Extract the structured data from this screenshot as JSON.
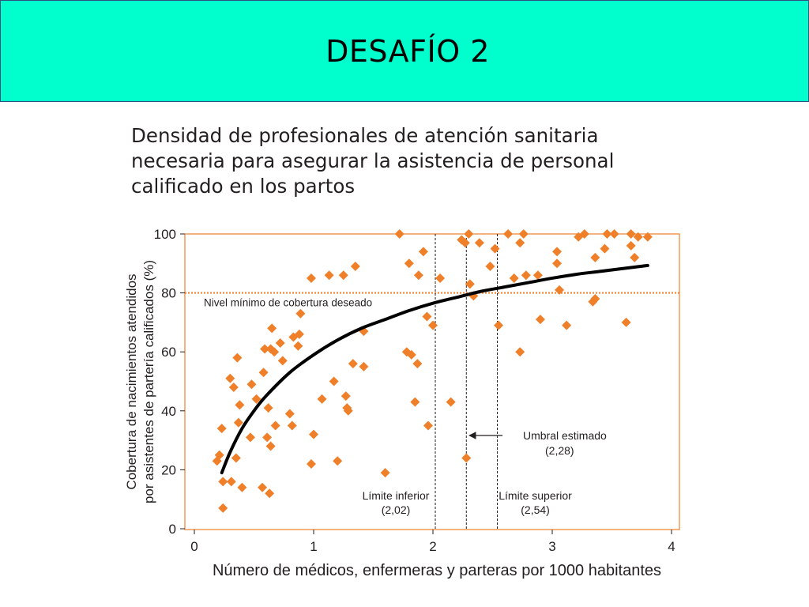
{
  "slide": {
    "title": "DESAFÍO 2",
    "banner_color": "#00ffcc"
  },
  "chart_data": {
    "type": "scatter",
    "title": "Densidad de profesionales de atención sanitaria necesaria para asegurar la asistencia de personal calificado en los partos",
    "xlabel": "Número de médicos, enfermeras y parteras por 1000 habitantes",
    "ylabel": "Cobertura de nacimientos atendidos por asistentes de partería calificados (%)",
    "xlim": [
      0,
      4
    ],
    "ylim": [
      0,
      100
    ],
    "x_ticks": [
      "0",
      "1",
      "2",
      "3",
      "4"
    ],
    "y_ticks": [
      "0",
      "20",
      "40",
      "60",
      "80",
      "100"
    ],
    "marker_color": "#f07f2a",
    "curve_color": "#000000",
    "points": [
      [
        0.19,
        23
      ],
      [
        0.21,
        25
      ],
      [
        0.23,
        34
      ],
      [
        0.24,
        16
      ],
      [
        0.24,
        7
      ],
      [
        0.3,
        51
      ],
      [
        0.31,
        16
      ],
      [
        0.33,
        48
      ],
      [
        0.35,
        24
      ],
      [
        0.36,
        58
      ],
      [
        0.37,
        36
      ],
      [
        0.38,
        42
      ],
      [
        0.4,
        14
      ],
      [
        0.47,
        31
      ],
      [
        0.48,
        49
      ],
      [
        0.52,
        44
      ],
      [
        0.57,
        14
      ],
      [
        0.58,
        53
      ],
      [
        0.59,
        61
      ],
      [
        0.61,
        31
      ],
      [
        0.62,
        41
      ],
      [
        0.63,
        12
      ],
      [
        0.64,
        61
      ],
      [
        0.64,
        28
      ],
      [
        0.65,
        68
      ],
      [
        0.67,
        60
      ],
      [
        0.68,
        35
      ],
      [
        0.72,
        63
      ],
      [
        0.74,
        57
      ],
      [
        0.8,
        39
      ],
      [
        0.82,
        35
      ],
      [
        0.83,
        65
      ],
      [
        0.87,
        62
      ],
      [
        0.88,
        66
      ],
      [
        0.89,
        73
      ],
      [
        0.98,
        85
      ],
      [
        0.98,
        22
      ],
      [
        1.0,
        32
      ],
      [
        1.07,
        44
      ],
      [
        1.13,
        86
      ],
      [
        1.17,
        50
      ],
      [
        1.2,
        23
      ],
      [
        1.25,
        86
      ],
      [
        1.27,
        45
      ],
      [
        1.28,
        41
      ],
      [
        1.29,
        40
      ],
      [
        1.33,
        56
      ],
      [
        1.35,
        89
      ],
      [
        1.42,
        55
      ],
      [
        1.42,
        67
      ],
      [
        1.6,
        19
      ],
      [
        1.72,
        100
      ],
      [
        1.78,
        60
      ],
      [
        1.8,
        90
      ],
      [
        1.82,
        59
      ],
      [
        1.85,
        43
      ],
      [
        1.87,
        56
      ],
      [
        1.88,
        86
      ],
      [
        1.92,
        94
      ],
      [
        1.95,
        72
      ],
      [
        1.96,
        35
      ],
      [
        2.0,
        69
      ],
      [
        2.06,
        85
      ],
      [
        2.15,
        43
      ],
      [
        2.24,
        98
      ],
      [
        2.27,
        97
      ],
      [
        2.28,
        24
      ],
      [
        2.3,
        100
      ],
      [
        2.31,
        83
      ],
      [
        2.34,
        79
      ],
      [
        2.39,
        97
      ],
      [
        2.48,
        89
      ],
      [
        2.52,
        95
      ],
      [
        2.55,
        69
      ],
      [
        2.63,
        100
      ],
      [
        2.68,
        85
      ],
      [
        2.73,
        97
      ],
      [
        2.73,
        60
      ],
      [
        2.76,
        100
      ],
      [
        2.78,
        86
      ],
      [
        2.88,
        86
      ],
      [
        2.9,
        71
      ],
      [
        3.04,
        94
      ],
      [
        3.04,
        90
      ],
      [
        3.06,
        81
      ],
      [
        3.12,
        69
      ],
      [
        3.22,
        99
      ],
      [
        3.27,
        100
      ],
      [
        3.34,
        77
      ],
      [
        3.36,
        92
      ],
      [
        3.36,
        78
      ],
      [
        3.44,
        95
      ],
      [
        3.46,
        100
      ],
      [
        3.52,
        100
      ],
      [
        3.62,
        70
      ],
      [
        3.66,
        100
      ],
      [
        3.66,
        96
      ],
      [
        3.69,
        92
      ],
      [
        3.72,
        99
      ],
      [
        3.8,
        99
      ]
    ],
    "curve": {
      "label": "",
      "points": [
        [
          0.23,
          19
        ],
        [
          0.3,
          26
        ],
        [
          0.4,
          34
        ],
        [
          0.5,
          40
        ],
        [
          0.6,
          45
        ],
        [
          0.8,
          53
        ],
        [
          1.0,
          59
        ],
        [
          1.2,
          64
        ],
        [
          1.4,
          68
        ],
        [
          1.6,
          71
        ],
        [
          1.8,
          74
        ],
        [
          2.0,
          76.5
        ],
        [
          2.2,
          78.5
        ],
        [
          2.4,
          80.5
        ],
        [
          2.6,
          82
        ],
        [
          2.8,
          83.5
        ],
        [
          3.0,
          85
        ],
        [
          3.2,
          86.3
        ],
        [
          3.4,
          87.3
        ],
        [
          3.6,
          88.3
        ],
        [
          3.8,
          89.3
        ]
      ]
    },
    "reference_line": {
      "y": 80,
      "label": "Nivel mínimo de cobertura deseado",
      "color": "#f07f2a"
    },
    "vertical_lines": [
      {
        "x": 2.02,
        "label": "Límite inferior",
        "value_label": "(2,02)"
      },
      {
        "x": 2.28,
        "label": "Umbral estimado",
        "value_label": "(2,28)"
      },
      {
        "x": 2.54,
        "label": "Límite superior",
        "value_label": "(2,54)"
      }
    ],
    "grid": false
  }
}
